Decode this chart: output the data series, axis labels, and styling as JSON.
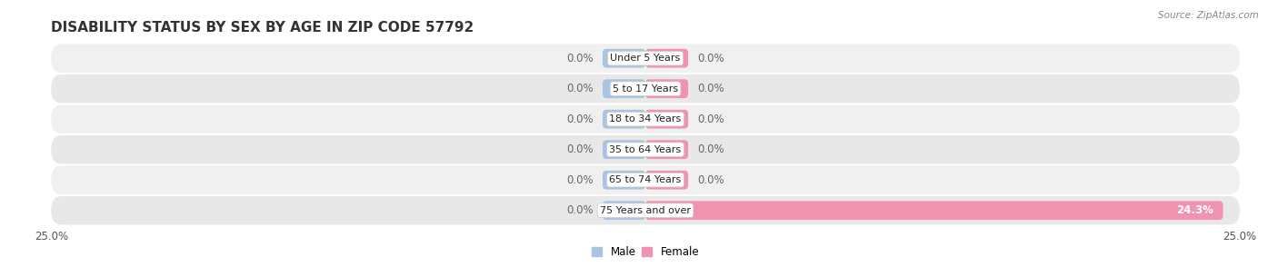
{
  "title": "DISABILITY STATUS BY SEX BY AGE IN ZIP CODE 57792",
  "source": "Source: ZipAtlas.com",
  "categories": [
    "Under 5 Years",
    "5 to 17 Years",
    "18 to 34 Years",
    "35 to 64 Years",
    "65 to 74 Years",
    "75 Years and over"
  ],
  "male_values": [
    0.0,
    0.0,
    0.0,
    0.0,
    0.0,
    0.0
  ],
  "female_values": [
    0.0,
    0.0,
    0.0,
    0.0,
    0.0,
    24.3
  ],
  "male_color": "#a8c4e0",
  "female_color": "#f093b0",
  "xlim": 25.0,
  "stub_size": 1.8,
  "bar_height": 0.62,
  "background_color": "#ffffff",
  "row_bg_colors": [
    "#f0f0f0",
    "#e8e8e8"
  ],
  "title_fontsize": 11,
  "source_fontsize": 7.5,
  "bar_label_fontsize": 8.5,
  "category_fontsize": 8,
  "legend_fontsize": 8.5,
  "title_color": "#333333",
  "label_color": "#666666",
  "inside_label_color": "#ffffff"
}
